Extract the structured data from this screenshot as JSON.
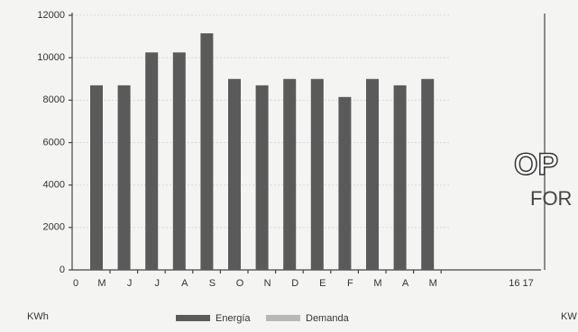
{
  "chart_data": {
    "type": "bar",
    "categories": [
      "M",
      "J",
      "J",
      "A",
      "S",
      "O",
      "N",
      "D",
      "E",
      "F",
      "M",
      "A",
      "M"
    ],
    "series": [
      {
        "name": "Energía",
        "color": "#5a5a5a",
        "values": [
          8700,
          8700,
          10250,
          10250,
          11150,
          9000,
          8700,
          9000,
          9000,
          8150,
          9000,
          8700,
          9000
        ]
      }
    ],
    "other_legend": [
      {
        "name": "Demanda",
        "color": "#b8b8b8"
      }
    ],
    "ylim": [
      0,
      12000
    ],
    "yticks": [
      0,
      2000,
      4000,
      6000,
      8000,
      10000,
      12000
    ],
    "grid": true,
    "x_origin_label": "0",
    "x_end_label": "16 17",
    "unit_label": "KWh",
    "side_texts": [
      "OP",
      "FOR",
      "KW"
    ]
  }
}
